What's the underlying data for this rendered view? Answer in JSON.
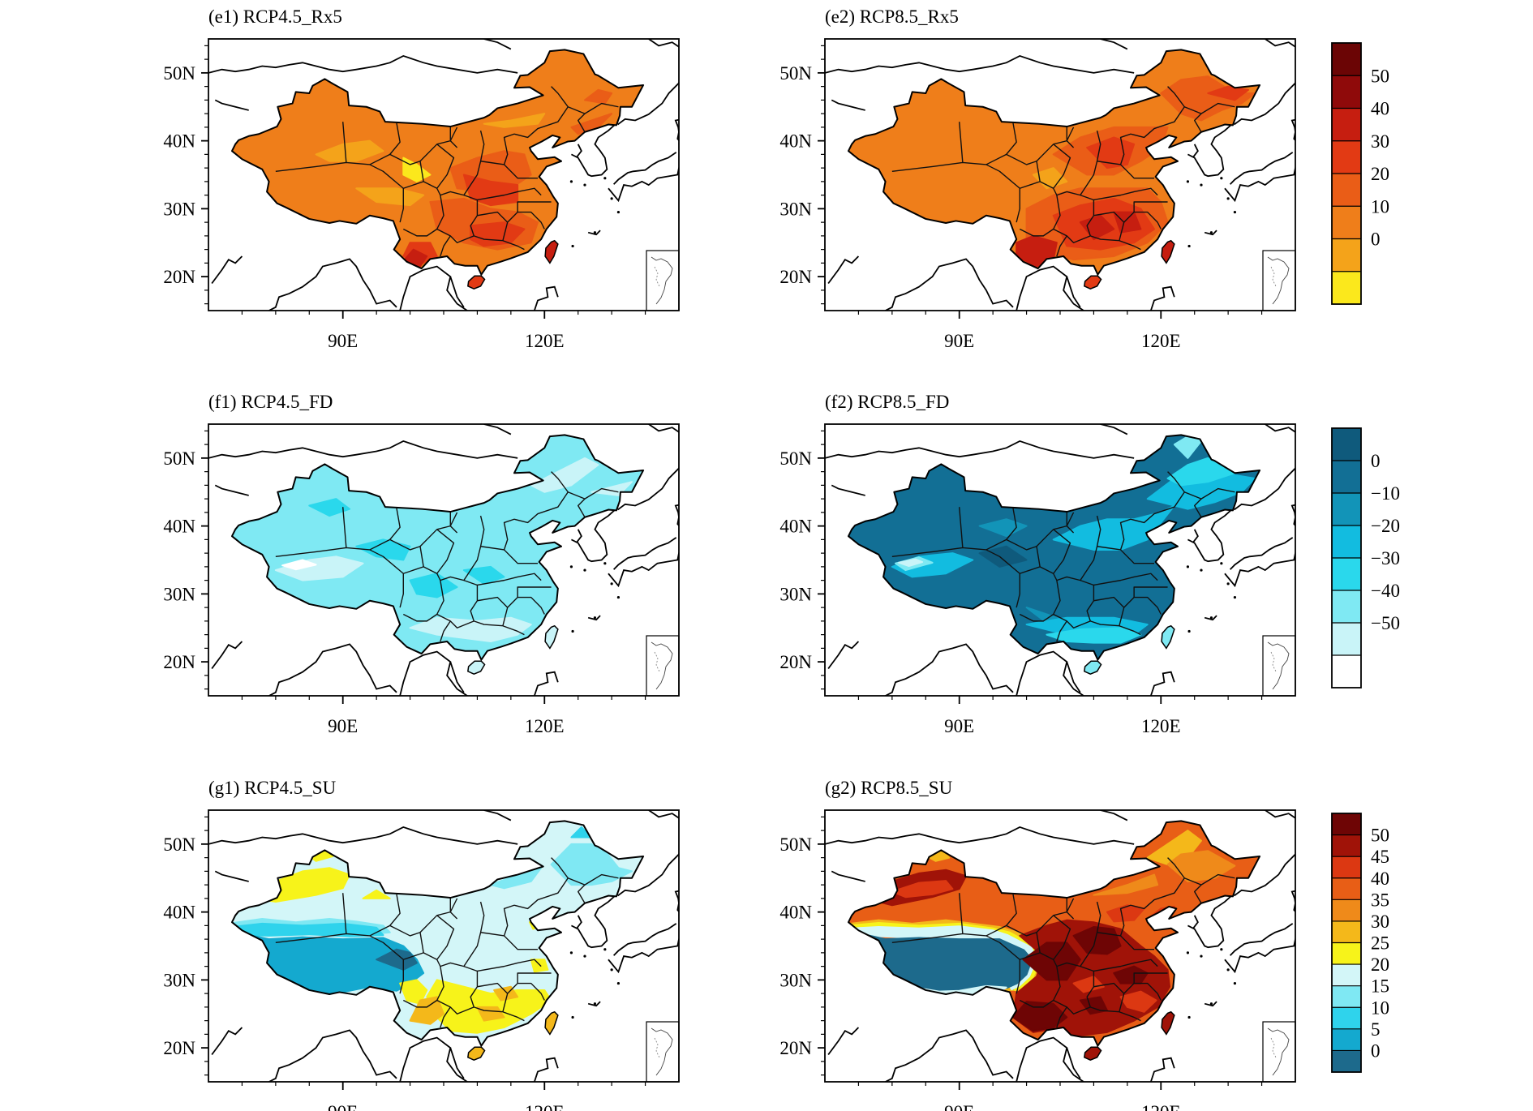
{
  "figure": {
    "rows": [
      {
        "id": "rx5",
        "panels": [
          {
            "title": "(e1) RCP4.5_Rx5",
            "scenario": "RCP4.5",
            "index": "Rx5",
            "palette": "warm",
            "pattern": "rx5_45"
          },
          {
            "title": "(e2) RCP8.5_Rx5",
            "scenario": "RCP8.5",
            "index": "Rx5",
            "palette": "warm",
            "pattern": "rx5_85"
          }
        ],
        "colorbar": {
          "labels": [
            "50",
            "40",
            "30",
            "20",
            "10",
            "0"
          ],
          "colors": [
            "#fbe81c",
            "#f4a31a",
            "#ef7e1a",
            "#ea5d17",
            "#e23a14",
            "#c61e10",
            "#8f0a0a",
            "#6b0505"
          ]
        }
      },
      {
        "id": "fd",
        "panels": [
          {
            "title": "(f1) RCP4.5_FD",
            "scenario": "RCP4.5",
            "index": "FD",
            "palette": "cool",
            "pattern": "fd_45"
          },
          {
            "title": "(f2) RCP8.5_FD",
            "scenario": "RCP8.5",
            "index": "FD",
            "palette": "cool",
            "pattern": "fd_85"
          }
        ],
        "colorbar": {
          "labels": [
            "0",
            "−10",
            "−20",
            "−30",
            "−40",
            "−50"
          ],
          "colors": [
            "#ffffff",
            "#c9f4f8",
            "#7fe9f3",
            "#2ad8ec",
            "#12bce0",
            "#1294b8",
            "#126f95",
            "#0f5a7c"
          ]
        }
      },
      {
        "id": "su",
        "panels": [
          {
            "title": "(g1) RCP4.5_SU",
            "scenario": "RCP4.5",
            "index": "SU",
            "palette": "su",
            "pattern": "su_45"
          },
          {
            "title": "(g2) RCP8.5_SU",
            "scenario": "RCP8.5",
            "index": "SU",
            "palette": "su",
            "pattern": "su_85"
          }
        ],
        "colorbar": {
          "labels": [
            "50",
            "45",
            "40",
            "35",
            "30",
            "25",
            "20",
            "15",
            "10",
            "5",
            "0"
          ],
          "colors": [
            "#1d6a8c",
            "#14a9cf",
            "#2fd3ec",
            "#7fe8f3",
            "#d3f6f8",
            "#f7f31a",
            "#f4b81a",
            "#ef8a1a",
            "#e85e16",
            "#dc3812",
            "#a01308",
            "#6e0505"
          ]
        }
      }
    ],
    "axes": {
      "y_ticks": [
        "50N",
        "40N",
        "30N",
        "20N"
      ],
      "x_ticks": [
        "90E",
        "120E"
      ],
      "lon_range": [
        70,
        140
      ],
      "lat_range": [
        15,
        55
      ]
    }
  }
}
